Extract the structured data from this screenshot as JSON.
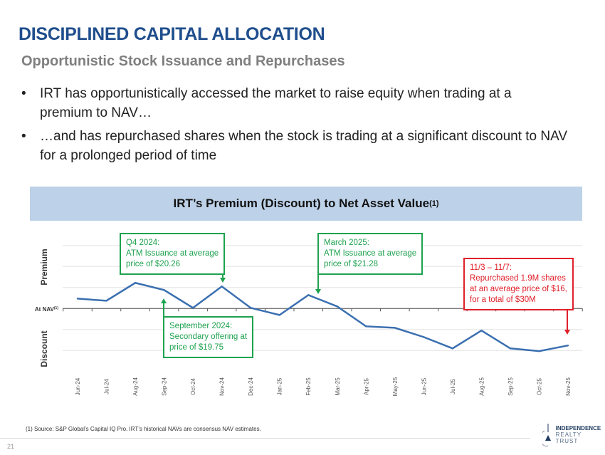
{
  "header": {
    "title": "DISCIPLINED CAPITAL ALLOCATION",
    "subtitle": "Opportunistic Stock Issuance and Repurchases"
  },
  "bullets": [
    "IRT has opportunistically accessed the market to raise equity when trading at a premium to NAV…",
    "…and has repurchased shares when the stock is trading at a significant discount to NAV for a prolonged period of time"
  ],
  "bullet_symbol": "•",
  "chart_header": {
    "text": "IRT’s Premium (Discount) to Net Asset Value",
    "sup": "(1)"
  },
  "chart_data": {
    "type": "line",
    "title": "IRT’s Premium (Discount) to Net Asset Value(1)",
    "categories": [
      "Jun-24",
      "Jul-24",
      "Aug-24",
      "Sep-24",
      "Oct-24",
      "Nov-24",
      "Dec-24",
      "Jan-25",
      "Feb-25",
      "Mar-25",
      "Apr-25",
      "May-25",
      "Jun-25",
      "Jul-25",
      "Aug-25",
      "Sep-25",
      "Oct-25",
      "Nov-25"
    ],
    "values": [
      0.47,
      0.37,
      1.22,
      0.88,
      0.03,
      1.05,
      0.03,
      -0.31,
      0.64,
      0.1,
      -0.85,
      -0.92,
      -1.36,
      -1.9,
      -1.05,
      -1.9,
      -2.03,
      -1.76
    ],
    "ylim": [
      -2.5,
      3.5
    ],
    "baseline_label": "At NAV",
    "baseline_sup": "(1)",
    "upper_label": "Premium",
    "lower_label": "Discount",
    "grid": true,
    "line_color": "#3a6fb0",
    "annotations": [
      {
        "title": "Q4 2024:",
        "lines": [
          "ATM Issuance at average",
          "price of $20.26"
        ],
        "target": "Nov-24",
        "color": "#1ea24f"
      },
      {
        "title": "September 2024:",
        "lines": [
          "Secondary offering at",
          "price of $19.75"
        ],
        "target": "Sep-24",
        "color": "#1ea24f"
      },
      {
        "title": "March 2025:",
        "lines": [
          "ATM Issuance at average",
          "price of $21.28"
        ],
        "target": "Feb-25",
        "color": "#1ea24f"
      },
      {
        "title": "11/3 – 11/7:",
        "lines": [
          "Repurchased 1.9M shares",
          "at an average price of $16,",
          "for a total of $30M"
        ],
        "target": "Nov-25",
        "color": "#e0202a"
      }
    ]
  },
  "footer": {
    "footnote": "(1)  Source: S&P Global’s Capital IQ Pro. IRT’s historical NAVs are consensus NAV estimates.",
    "page": "21",
    "logo_line1": "INDEPENDENCE",
    "logo_line2": "REALTY TRUST"
  }
}
